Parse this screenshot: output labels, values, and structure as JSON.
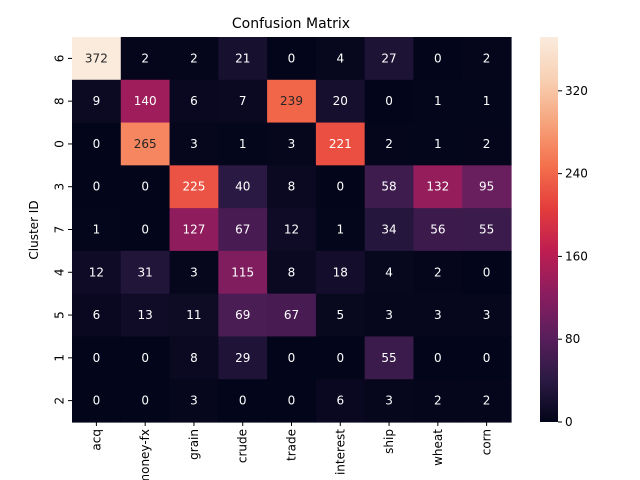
{
  "chart_data": {
    "type": "heatmap",
    "title": "Confusion Matrix",
    "xlabel": "",
    "ylabel": "Cluster ID",
    "x_categories": [
      "acq",
      "money-fx",
      "grain",
      "crude",
      "trade",
      "interest",
      "ship",
      "wheat",
      "corn"
    ],
    "y_categories": [
      "6",
      "8",
      "0",
      "3",
      "7",
      "4",
      "5",
      "1",
      "2"
    ],
    "values": [
      [
        372,
        2,
        2,
        21,
        0,
        4,
        27,
        0,
        2
      ],
      [
        9,
        140,
        6,
        7,
        239,
        20,
        0,
        1,
        1
      ],
      [
        0,
        265,
        3,
        1,
        3,
        221,
        2,
        1,
        2
      ],
      [
        0,
        0,
        225,
        40,
        8,
        0,
        58,
        132,
        95
      ],
      [
        1,
        0,
        127,
        67,
        12,
        1,
        34,
        56,
        55
      ],
      [
        12,
        31,
        3,
        115,
        8,
        18,
        4,
        2,
        0
      ],
      [
        6,
        13,
        11,
        69,
        67,
        5,
        3,
        3,
        3
      ],
      [
        0,
        0,
        8,
        29,
        0,
        0,
        55,
        0,
        0
      ],
      [
        0,
        0,
        3,
        0,
        0,
        6,
        3,
        2,
        2
      ]
    ],
    "colorbar": {
      "min": 0,
      "max": 372,
      "ticks": [
        0,
        80,
        160,
        240,
        320
      ]
    },
    "colormap": "rocket",
    "colorbar_colors": [
      "#03051a",
      "#2b1a43",
      "#5a1e5c",
      "#8b1d5f",
      "#be1e51",
      "#e43d3c",
      "#f4714d",
      "#f6a47c",
      "#f8d0b3",
      "#faebdd"
    ],
    "annotation_colors": {
      "light": "#ffffff",
      "dark": "#262626"
    }
  }
}
